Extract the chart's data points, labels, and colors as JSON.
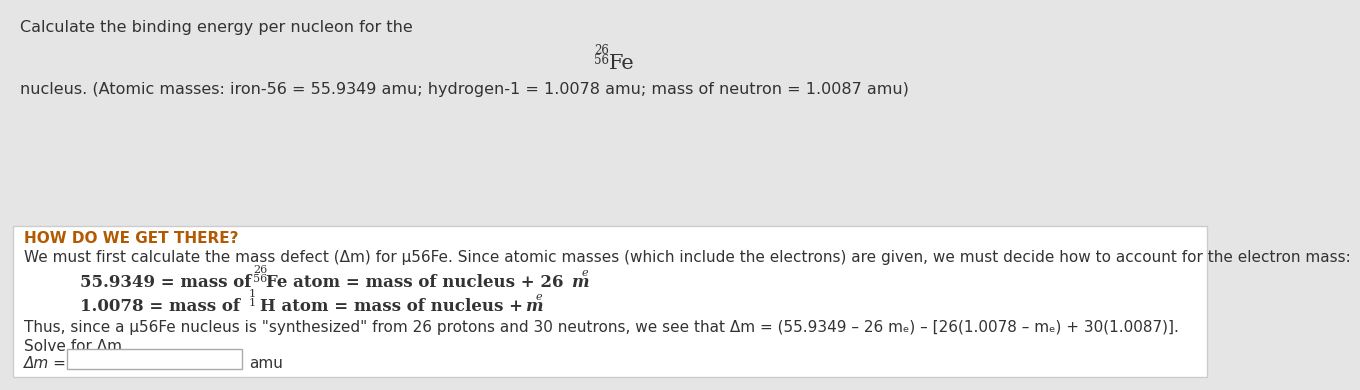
{
  "bg_color_top": "#e5e5e5",
  "bg_color_bottom": "#ffffff",
  "border_color": "#cccccc",
  "header_color": "#b35900",
  "text_color": "#333333",
  "line1": "Calculate the binding energy per nucleon for the",
  "fe_label": "Fe",
  "fe_super": "56",
  "fe_sub": "26",
  "line2": "nucleus. (Atomic masses: iron-56 = 55.9349 amu; hydrogen-1 = 1.0078 amu; mass of neutron = 1.0087 amu)",
  "how_label": "HOW DO WE GET THERE?",
  "intro_text": "We must first calculate the mass defect (Δm) for µ56Fe. Since atomic masses (which include the electrons) are given, we must decide how to account for the electron mass:",
  "thus_text": "Thus, since a µ56Fe nucleus is \"synthesized\" from 26 protons and 30 neutrons, we see that Δm = (55.9349 – 26 mₑ) – [26(1.0078 – mₑ) + 30(1.0087)].",
  "solve_text": "Solve for Δm.",
  "delta_m_label": "Δm =",
  "amu_label": "amu"
}
